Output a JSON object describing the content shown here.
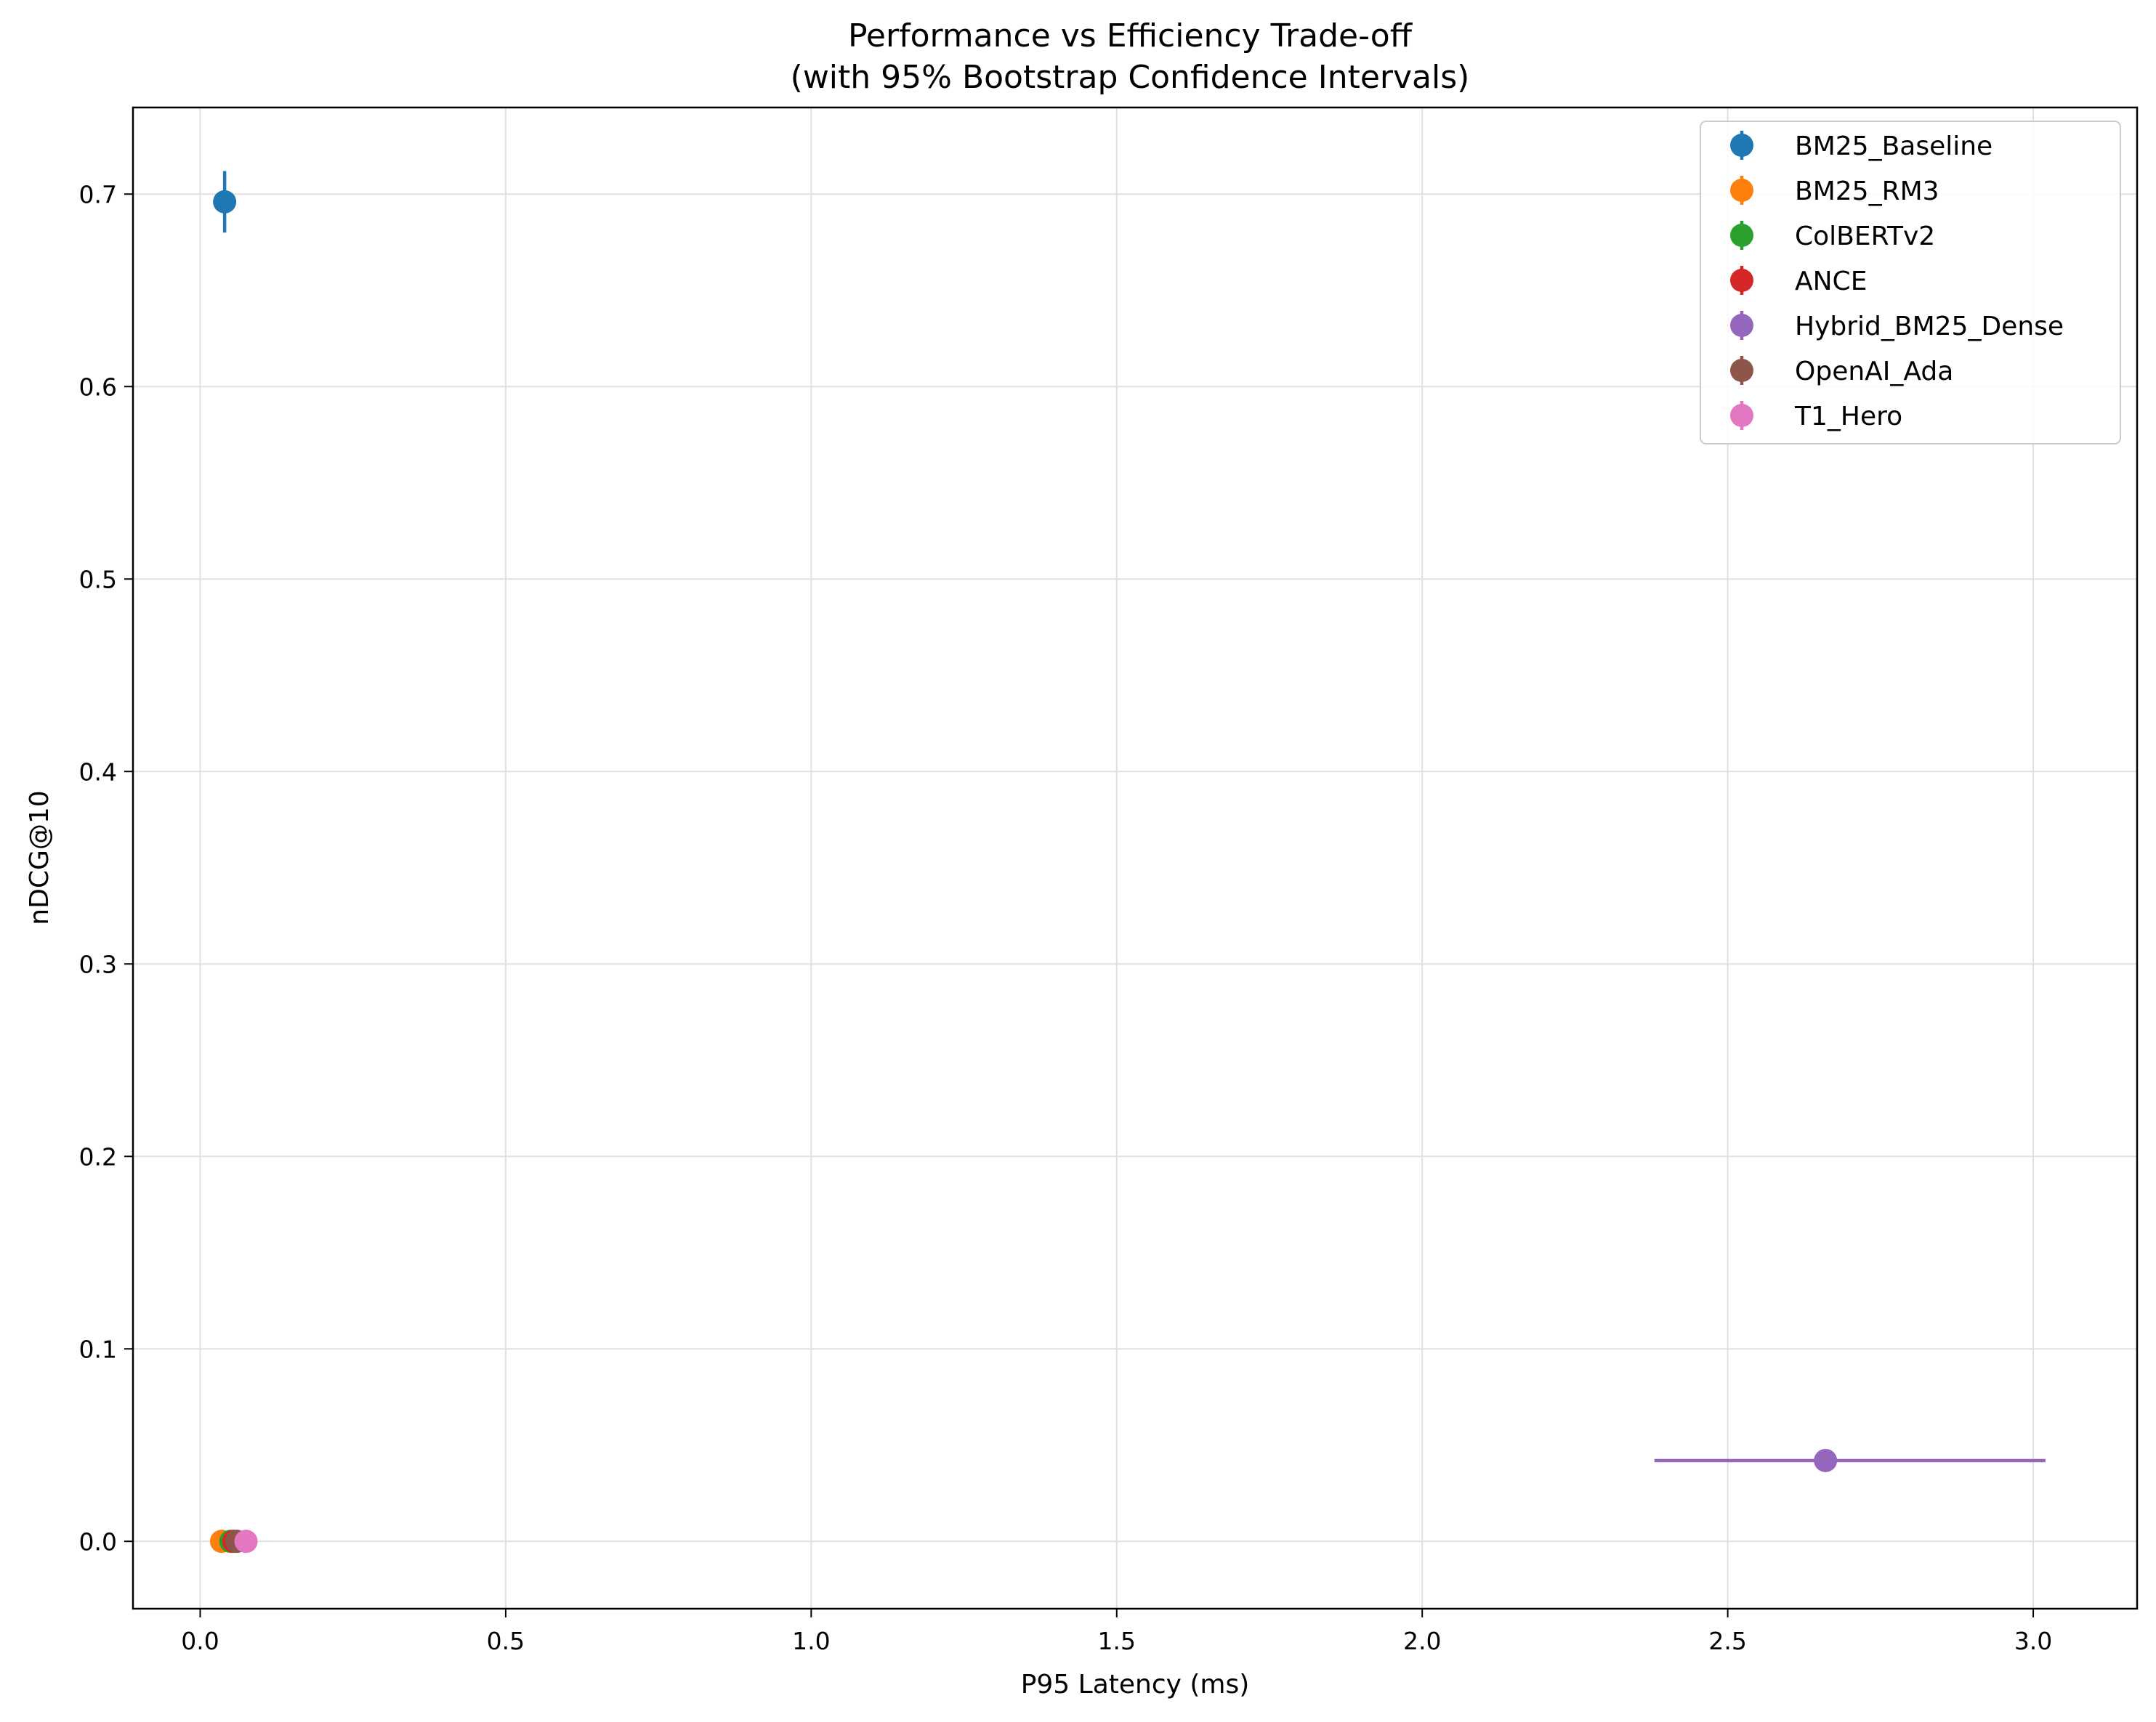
{
  "chart_data": {
    "type": "scatter",
    "title": "Performance vs Efficiency Trade-off",
    "subtitle": "(with 95% Bootstrap Confidence Intervals)",
    "xlabel": "P95 Latency (ms)",
    "ylabel": "nDCG@10",
    "xlim": [
      -0.11,
      3.17
    ],
    "ylim": [
      -0.035,
      0.745
    ],
    "xticks": [
      0.0,
      0.5,
      1.0,
      1.5,
      2.0,
      2.5,
      3.0
    ],
    "xtick_labels": [
      "0.0",
      "0.5",
      "1.0",
      "1.5",
      "2.0",
      "2.5",
      "3.0"
    ],
    "yticks": [
      0.0,
      0.1,
      0.2,
      0.3,
      0.4,
      0.5,
      0.6,
      0.7
    ],
    "ytick_labels": [
      "0.0",
      "0.1",
      "0.2",
      "0.3",
      "0.4",
      "0.5",
      "0.6",
      "0.7"
    ],
    "grid": true,
    "legend_position": "top-right",
    "series": [
      {
        "name": "BM25_Baseline",
        "color": "#1f77b4",
        "x": 0.04,
        "y": 0.696,
        "xerr": [
          0.04,
          0.04
        ],
        "yerr": [
          0.68,
          0.712
        ]
      },
      {
        "name": "BM25_RM3",
        "color": "#ff7f0e",
        "x": 0.035,
        "y": 0.0,
        "xerr": [
          0.035,
          0.035
        ],
        "yerr": [
          0.0,
          0.0
        ]
      },
      {
        "name": "ColBERTv2",
        "color": "#2ca02c",
        "x": 0.05,
        "y": 0.0,
        "xerr": [
          0.05,
          0.05
        ],
        "yerr": [
          0.0,
          0.0
        ]
      },
      {
        "name": "ANCE",
        "color": "#d62728",
        "x": 0.055,
        "y": 0.0,
        "xerr": [
          0.055,
          0.055
        ],
        "yerr": [
          0.0,
          0.0
        ]
      },
      {
        "name": "Hybrid_BM25_Dense",
        "color": "#9467bd",
        "x": 2.66,
        "y": 0.042,
        "xerr": [
          2.38,
          3.02
        ],
        "yerr": [
          0.042,
          0.042
        ]
      },
      {
        "name": "OpenAI_Ada",
        "color": "#8c564b",
        "x": 0.06,
        "y": 0.0,
        "xerr": [
          0.06,
          0.06
        ],
        "yerr": [
          0.0,
          0.0
        ]
      },
      {
        "name": "T1_Hero",
        "color": "#e377c2",
        "x": 0.075,
        "y": 0.0,
        "xerr": [
          0.075,
          0.075
        ],
        "yerr": [
          0.0,
          0.0
        ]
      }
    ]
  }
}
